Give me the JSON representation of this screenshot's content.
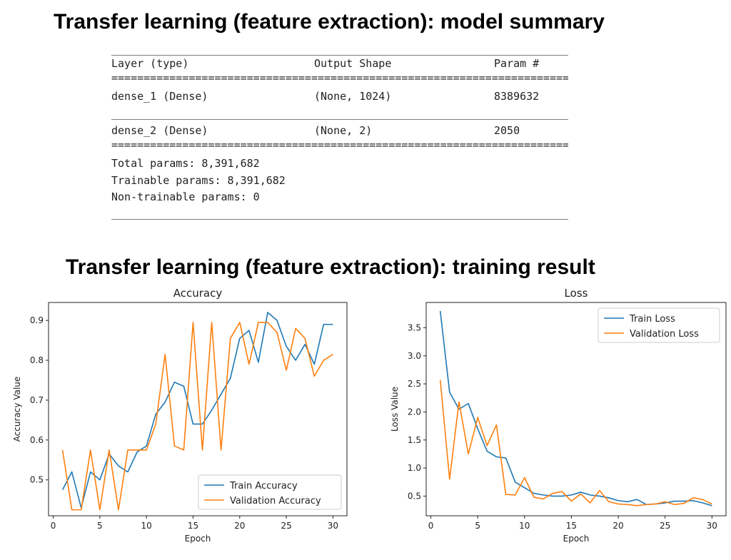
{
  "headings": {
    "summary_title": "Transfer learning (feature extraction): model summary",
    "result_title": "Transfer learning (feature extraction): training result"
  },
  "model_summary": {
    "columns": [
      "Layer (type)",
      "Output Shape",
      "Param #"
    ],
    "rows": [
      {
        "layer": "dense_1 (Dense)",
        "shape": "(None, 1024)",
        "params": "8389632"
      },
      {
        "layer": "dense_2 (Dense)",
        "shape": "(None, 2)",
        "params": "2050"
      }
    ],
    "total": "Total params: 8,391,682",
    "trainable": "Trainable params: 8,391,682",
    "non_trainable": "Non-trainable params: 0"
  },
  "chart_data": [
    {
      "type": "line",
      "title": "Accuracy",
      "xlabel": "Epoch",
      "ylabel": "Accuracy Value",
      "xlim": [
        -0.5,
        31.5
      ],
      "ylim": [
        0.41,
        0.945
      ],
      "xticks": [
        0,
        5,
        10,
        15,
        20,
        25,
        30
      ],
      "yticks": [
        0.5,
        0.6,
        0.7,
        0.8,
        0.9
      ],
      "legend": "lower-right",
      "x": [
        1,
        2,
        3,
        4,
        5,
        6,
        7,
        8,
        9,
        10,
        11,
        12,
        13,
        14,
        15,
        16,
        17,
        18,
        19,
        20,
        21,
        22,
        23,
        24,
        25,
        26,
        27,
        28,
        29,
        30
      ],
      "series": [
        {
          "name": "Train Accuracy",
          "color": "#1f77b4",
          "values": [
            0.475,
            0.52,
            0.43,
            0.52,
            0.5,
            0.565,
            0.535,
            0.52,
            0.57,
            0.585,
            0.665,
            0.695,
            0.745,
            0.735,
            0.64,
            0.64,
            0.675,
            0.715,
            0.755,
            0.855,
            0.875,
            0.795,
            0.92,
            0.9,
            0.835,
            0.8,
            0.84,
            0.79,
            0.89,
            0.89
          ]
        },
        {
          "name": "Validation Accuracy",
          "color": "#ff7f0e",
          "values": [
            0.575,
            0.425,
            0.425,
            0.575,
            0.425,
            0.575,
            0.425,
            0.575,
            0.575,
            0.575,
            0.64,
            0.815,
            0.585,
            0.575,
            0.895,
            0.575,
            0.895,
            0.575,
            0.855,
            0.895,
            0.79,
            0.895,
            0.895,
            0.87,
            0.775,
            0.88,
            0.855,
            0.76,
            0.8,
            0.815
          ]
        }
      ]
    },
    {
      "type": "line",
      "title": "Loss",
      "xlabel": "Epoch",
      "ylabel": "Loss Value",
      "xlim": [
        -0.5,
        31.5
      ],
      "ylim": [
        0.15,
        3.95
      ],
      "xticks": [
        0,
        5,
        10,
        15,
        20,
        25,
        30
      ],
      "yticks": [
        0.5,
        1.0,
        1.5,
        2.0,
        2.5,
        3.0,
        3.5
      ],
      "legend": "upper-right",
      "x": [
        1,
        2,
        3,
        4,
        5,
        6,
        7,
        8,
        9,
        10,
        11,
        12,
        13,
        14,
        15,
        16,
        17,
        18,
        19,
        20,
        21,
        22,
        23,
        24,
        25,
        26,
        27,
        28,
        29,
        30
      ],
      "series": [
        {
          "name": "Train Loss",
          "color": "#1f77b4",
          "values": [
            3.8,
            2.35,
            2.05,
            2.15,
            1.7,
            1.3,
            1.2,
            1.18,
            0.75,
            0.65,
            0.55,
            0.52,
            0.5,
            0.5,
            0.52,
            0.57,
            0.52,
            0.5,
            0.47,
            0.42,
            0.4,
            0.44,
            0.35,
            0.36,
            0.38,
            0.41,
            0.41,
            0.42,
            0.38,
            0.33
          ]
        },
        {
          "name": "Validation Loss",
          "color": "#ff7f0e",
          "values": [
            2.57,
            0.8,
            2.18,
            1.25,
            1.9,
            1.4,
            1.77,
            0.53,
            0.52,
            0.83,
            0.48,
            0.45,
            0.55,
            0.58,
            0.41,
            0.54,
            0.38,
            0.6,
            0.4,
            0.36,
            0.35,
            0.33,
            0.35,
            0.36,
            0.4,
            0.35,
            0.37,
            0.47,
            0.44,
            0.36
          ]
        }
      ]
    }
  ]
}
